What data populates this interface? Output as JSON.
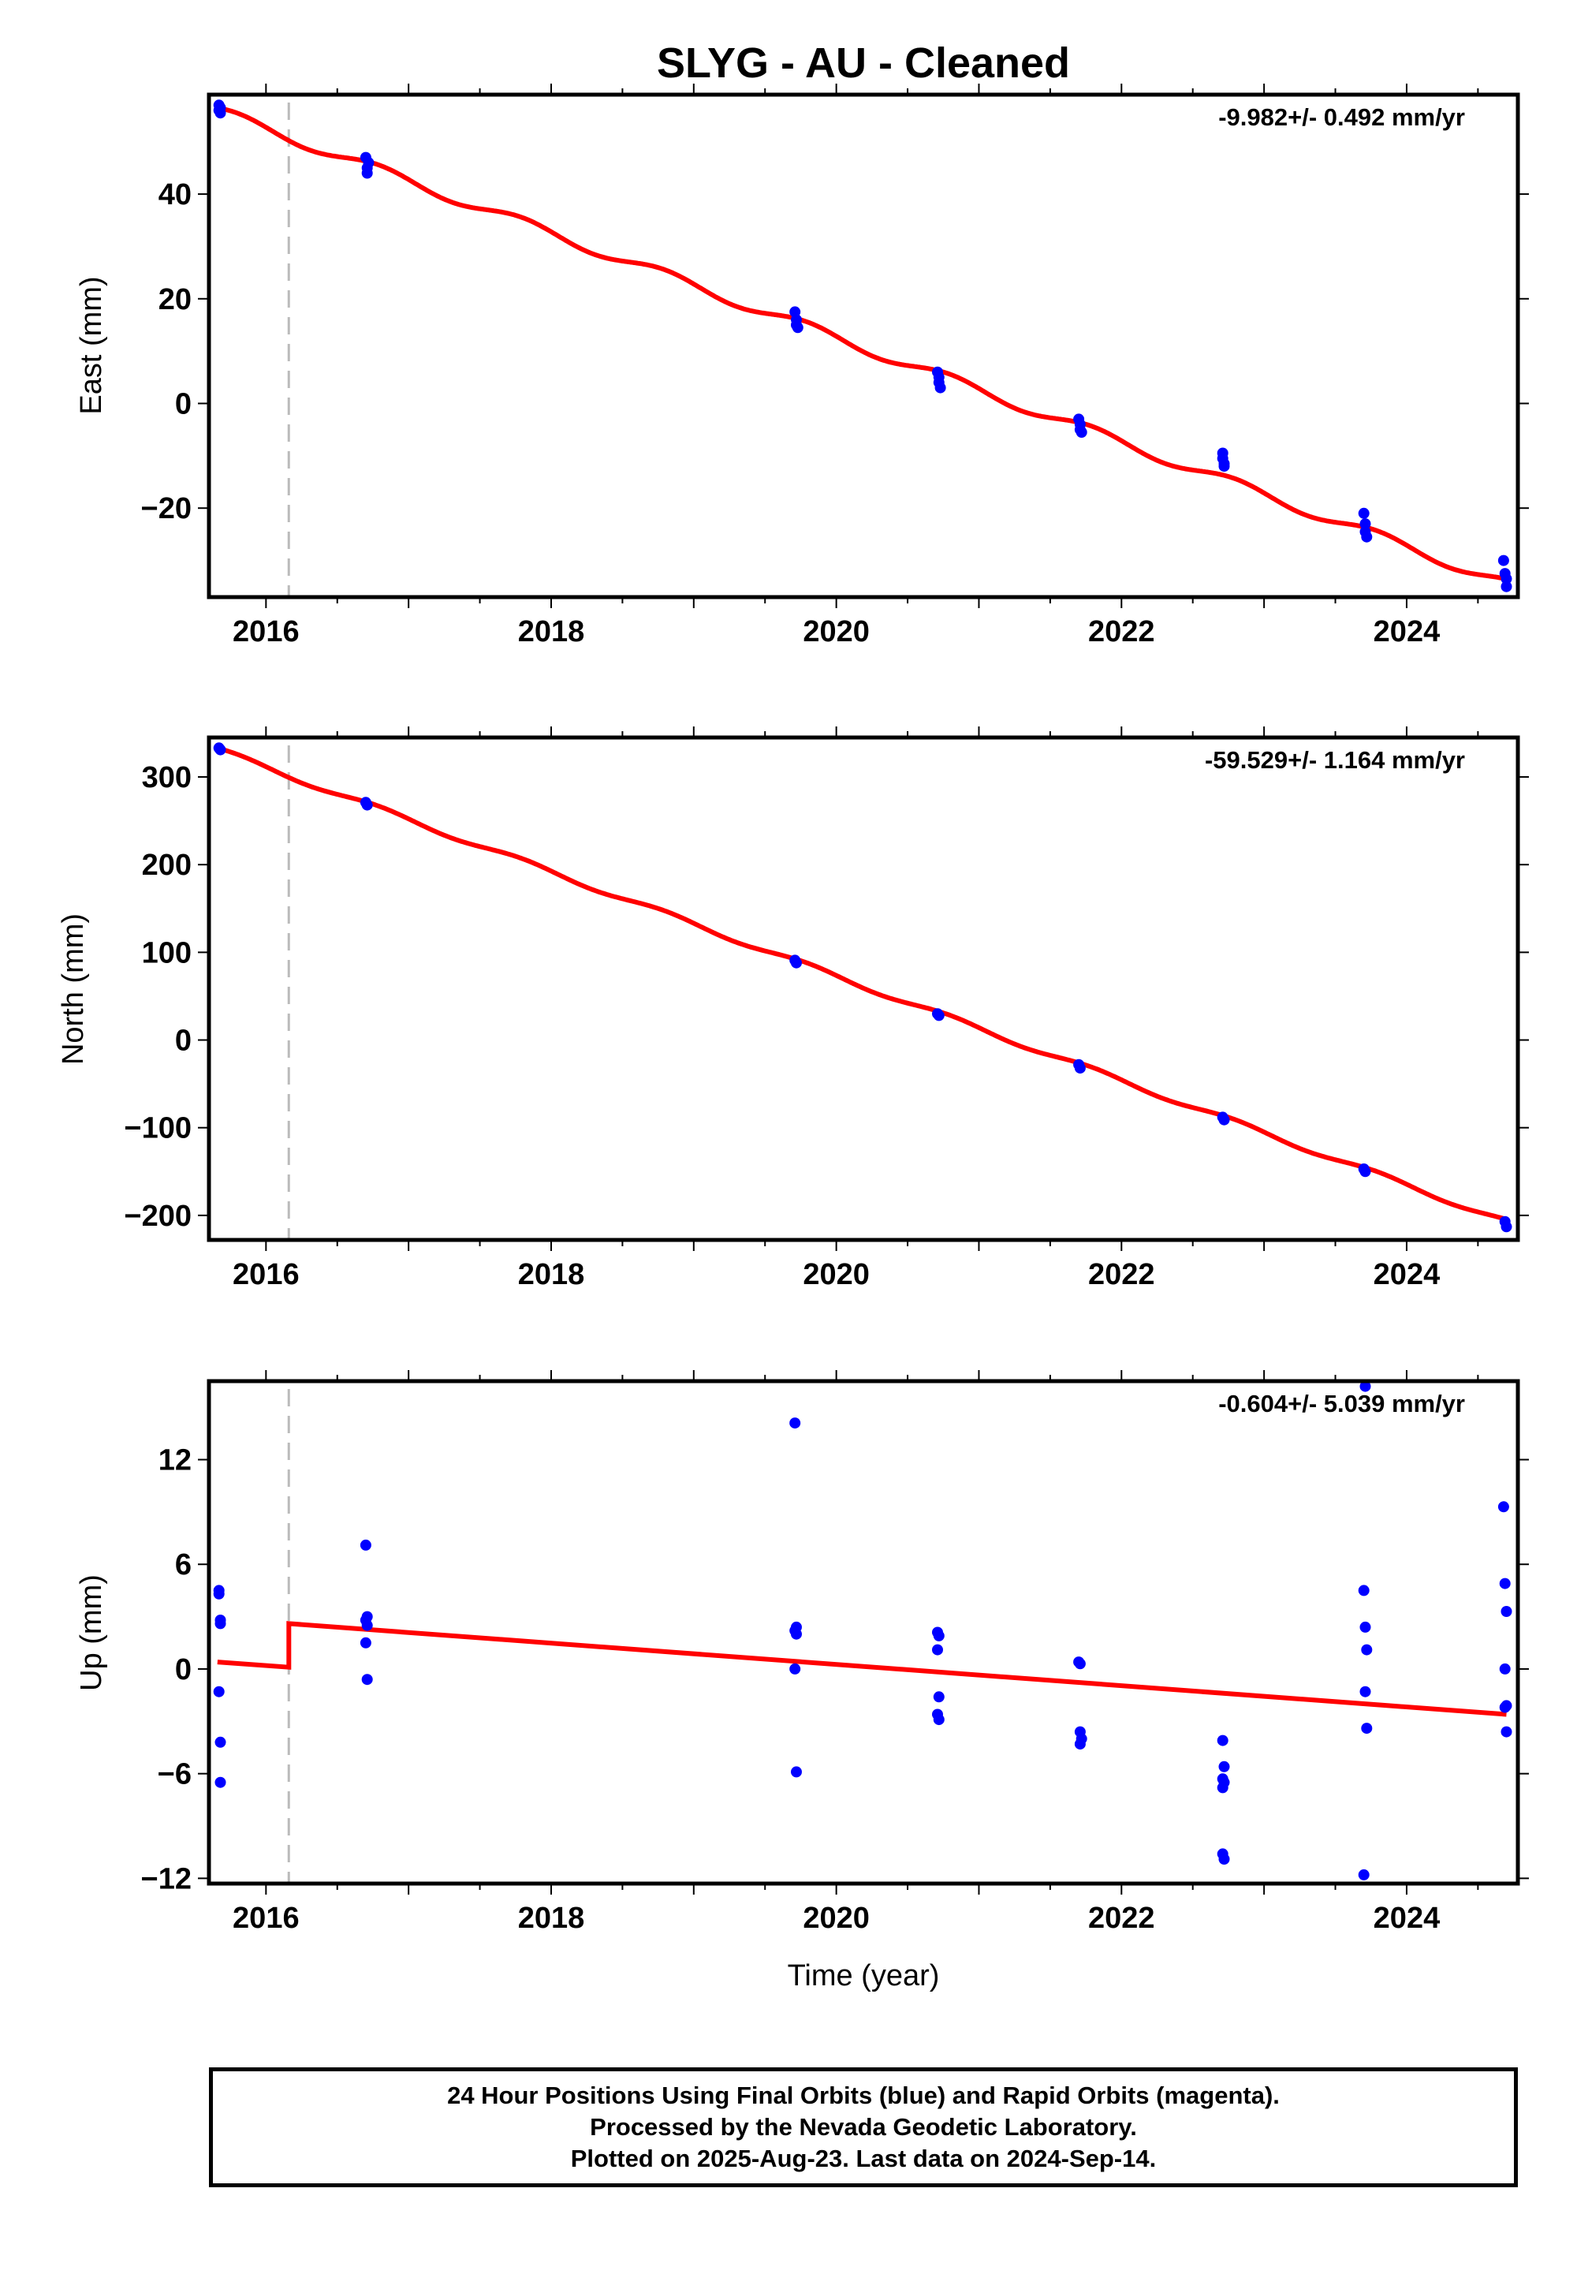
{
  "title": "SLYG  - AU - Cleaned",
  "xlabel": "Time (year)",
  "colors": {
    "model": "#ff0000",
    "data": "#0000ff",
    "offset_marker": "#bbbbbb",
    "frame": "#000000"
  },
  "chart_data": [
    {
      "type": "scatter",
      "panel": "east",
      "ylabel": "East (mm)",
      "rate_text": "-9.982+/- 0.492 mm/yr",
      "xlim": [
        2015.6,
        2024.78
      ],
      "ylim": [
        -37,
        59
      ],
      "xticks": [
        2016,
        2018,
        2020,
        2022,
        2024
      ],
      "yticks": [
        -20,
        0,
        20,
        40
      ],
      "offset_line_x": 2016.16,
      "model": {
        "name": "",
        "start": [
          2015.66,
          56.5
        ],
        "rate": -9.982,
        "seasonal_amplitude": 1.0,
        "seasonal_phase_deg": 40
      },
      "series": [
        {
          "name": "",
          "x": [
            2015.67,
            2015.67,
            2015.68,
            2015.68,
            2016.7,
            2016.71,
            2016.71,
            2016.72,
            2019.71,
            2019.72,
            2019.72,
            2019.73,
            2020.71,
            2020.72,
            2020.72,
            2020.73,
            2021.7,
            2021.71,
            2021.71,
            2021.72,
            2022.71,
            2022.71,
            2022.72,
            2022.72,
            2023.7,
            2023.71,
            2023.71,
            2023.72,
            2024.68,
            2024.69,
            2024.7,
            2024.7
          ],
          "y": [
            57.0,
            56.0,
            55.5,
            56.5,
            47.0,
            45.0,
            44.0,
            46.0,
            17.5,
            16.0,
            15.0,
            14.5,
            6.0,
            5.0,
            4.0,
            3.0,
            -3.0,
            -4.0,
            -5.0,
            -5.5,
            -9.5,
            -10.5,
            -11.5,
            -12.0,
            -21.0,
            -23.0,
            -24.5,
            -25.5,
            -30.0,
            -32.5,
            -33.5,
            -35.0
          ]
        }
      ]
    },
    {
      "type": "scatter",
      "panel": "north",
      "ylabel": "North (mm)",
      "rate_text": "-59.529+/- 1.164 mm/yr",
      "xlim": [
        2015.6,
        2024.78
      ],
      "ylim": [
        -228,
        345
      ],
      "xticks": [
        2016,
        2018,
        2020,
        2022,
        2024
      ],
      "yticks": [
        -200,
        -100,
        0,
        100,
        200,
        300
      ],
      "offset_line_x": 2016.16,
      "model": {
        "name": "",
        "start": [
          2015.66,
          333
        ],
        "rate": -59.529,
        "seasonal_amplitude": 3.0,
        "seasonal_phase_deg": 40
      },
      "series": [
        {
          "name": "",
          "x": [
            2015.67,
            2015.68,
            2016.7,
            2016.71,
            2019.71,
            2019.72,
            2020.71,
            2020.72,
            2021.7,
            2021.71,
            2022.71,
            2022.72,
            2023.7,
            2023.71,
            2024.69,
            2024.7
          ],
          "y": [
            333,
            331,
            271,
            268,
            91,
            88,
            30,
            28,
            -28,
            -32,
            -88,
            -91,
            -147,
            -150,
            -207,
            -213
          ]
        }
      ]
    },
    {
      "type": "scatter",
      "panel": "up",
      "ylabel": "Up (mm)",
      "rate_text": "-0.604+/- 5.039 mm/yr",
      "xlim": [
        2015.6,
        2024.78
      ],
      "ylim": [
        -12.3,
        16.5
      ],
      "xticks": [
        2016,
        2018,
        2020,
        2022,
        2024
      ],
      "yticks": [
        -12,
        -6,
        0,
        6,
        12
      ],
      "offset_line_x": 2016.16,
      "model": {
        "name": "",
        "segments": [
          {
            "x": [
              2015.66,
              2016.16
            ],
            "y": [
              0.4,
              0.1
            ]
          },
          {
            "x": [
              2016.16,
              2024.7
            ],
            "y": [
              2.6,
              -2.6
            ]
          }
        ]
      },
      "series": [
        {
          "name": "",
          "x": [
            2015.67,
            2015.67,
            2015.68,
            2015.68,
            2015.67,
            2015.68,
            2015.68,
            2016.7,
            2016.71,
            2016.7,
            2016.71,
            2016.7,
            2016.71,
            2019.71,
            2019.72,
            2019.71,
            2019.72,
            2019.71,
            2019.72,
            2020.71,
            2020.72,
            2020.71,
            2020.72,
            2020.71,
            2020.72,
            2021.71,
            2021.7,
            2021.71,
            2021.72,
            2021.71,
            2022.71,
            2022.72,
            2022.71,
            2022.72,
            2022.71,
            2022.71,
            2022.72,
            2023.7,
            2023.71,
            2023.72,
            2023.71,
            2023.72,
            2023.7,
            2023.71,
            2024.68,
            2024.69,
            2024.7,
            2024.69,
            2024.7,
            2024.69,
            2024.7
          ],
          "y": [
            4.5,
            4.3,
            2.8,
            2.6,
            -1.3,
            -4.2,
            -6.5,
            7.1,
            3.0,
            2.8,
            2.5,
            1.5,
            -0.6,
            14.1,
            2.4,
            2.2,
            2.0,
            0.0,
            -5.9,
            2.1,
            1.9,
            1.1,
            -1.6,
            -2.6,
            -2.9,
            0.3,
            0.4,
            -3.6,
            -4.0,
            -4.3,
            -4.1,
            -5.6,
            -6.3,
            -6.5,
            -6.8,
            -10.6,
            -10.9,
            4.5,
            2.4,
            1.1,
            -1.3,
            -3.4,
            -11.8,
            16.2,
            9.3,
            4.9,
            3.3,
            0.0,
            -2.1,
            -2.2,
            -3.6
          ]
        }
      ]
    }
  ],
  "footer": {
    "line1": "24 Hour Positions Using Final Orbits (blue) and Rapid Orbits (magenta).",
    "line2": "Processed by the Nevada Geodetic Laboratory.",
    "line3": "Plotted on 2025-Aug-23. Last data on 2024-Sep-14."
  }
}
